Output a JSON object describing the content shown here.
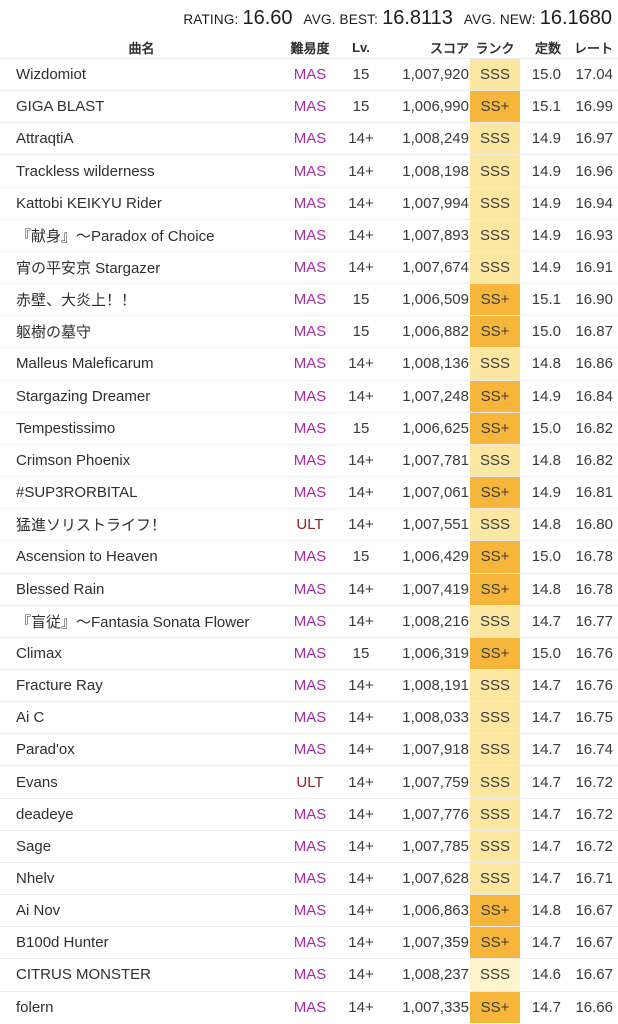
{
  "summary": {
    "rating_label": "RATING:",
    "rating_value": "16.60",
    "avg_best_label": "AVG. BEST:",
    "avg_best_value": "16.8113",
    "avg_new_label": "AVG. NEW:",
    "avg_new_value": "16.1680"
  },
  "table": {
    "headers": {
      "name": "曲名",
      "difficulty": "難易度",
      "level": "Lv.",
      "score": "スコア",
      "rank": "ランク",
      "constant": "定数",
      "rate": "レート"
    },
    "rows": [
      {
        "name": "Wizdomiot",
        "difficulty": "MAS",
        "level": "15",
        "score": "1,007,920",
        "rank": "SSS",
        "rank_key": "sss",
        "constant": "15.0",
        "rate": "17.04"
      },
      {
        "name": "GIGA BLAST",
        "difficulty": "MAS",
        "level": "15",
        "score": "1,006,990",
        "rank": "SS+",
        "rank_key": "ss_plus",
        "constant": "15.1",
        "rate": "16.99"
      },
      {
        "name": "AttraqtiA",
        "difficulty": "MAS",
        "level": "14+",
        "score": "1,008,249",
        "rank": "SSS",
        "rank_key": "sss",
        "constant": "14.9",
        "rate": "16.97"
      },
      {
        "name": "Trackless wilderness",
        "difficulty": "MAS",
        "level": "14+",
        "score": "1,008,198",
        "rank": "SSS",
        "rank_key": "sss",
        "constant": "14.9",
        "rate": "16.96"
      },
      {
        "name": "Kattobi KEIKYU Rider",
        "difficulty": "MAS",
        "level": "14+",
        "score": "1,007,994",
        "rank": "SSS",
        "rank_key": "sss",
        "constant": "14.9",
        "rate": "16.94"
      },
      {
        "name": "『献身』～Paradox of Choice",
        "difficulty": "MAS",
        "level": "14+",
        "score": "1,007,893",
        "rank": "SSS",
        "rank_key": "sss",
        "constant": "14.9",
        "rate": "16.93"
      },
      {
        "name": "宵の平安京 Stargazer",
        "difficulty": "MAS",
        "level": "14+",
        "score": "1,007,674",
        "rank": "SSS",
        "rank_key": "sss",
        "constant": "14.9",
        "rate": "16.91"
      },
      {
        "name": "赤壁、大炎上！！",
        "difficulty": "MAS",
        "level": "15",
        "score": "1,006,509",
        "rank": "SS+",
        "rank_key": "ss_plus",
        "constant": "15.1",
        "rate": "16.90"
      },
      {
        "name": "躯樹の墓守",
        "difficulty": "MAS",
        "level": "15",
        "score": "1,006,882",
        "rank": "SS+",
        "rank_key": "ss_plus",
        "constant": "15.0",
        "rate": "16.87"
      },
      {
        "name": "Malleus Maleficarum",
        "difficulty": "MAS",
        "level": "14+",
        "score": "1,008,136",
        "rank": "SSS",
        "rank_key": "sss",
        "constant": "14.8",
        "rate": "16.86"
      },
      {
        "name": "Stargazing Dreamer",
        "difficulty": "MAS",
        "level": "14+",
        "score": "1,007,248",
        "rank": "SS+",
        "rank_key": "ss_plus",
        "constant": "14.9",
        "rate": "16.84"
      },
      {
        "name": "Tempestissimo",
        "difficulty": "MAS",
        "level": "15",
        "score": "1,006,625",
        "rank": "SS+",
        "rank_key": "ss_plus",
        "constant": "15.0",
        "rate": "16.82"
      },
      {
        "name": "Crimson Phoenix",
        "difficulty": "MAS",
        "level": "14+",
        "score": "1,007,781",
        "rank": "SSS",
        "rank_key": "sss",
        "constant": "14.8",
        "rate": "16.82"
      },
      {
        "name": "#SUP3RORBITAL",
        "difficulty": "MAS",
        "level": "14+",
        "score": "1,007,061",
        "rank": "SS+",
        "rank_key": "ss_plus",
        "constant": "14.9",
        "rate": "16.81"
      },
      {
        "name": "猛進ソリストライフ！",
        "difficulty": "ULT",
        "level": "14+",
        "score": "1,007,551",
        "rank": "SSS",
        "rank_key": "sss",
        "constant": "14.8",
        "rate": "16.80"
      },
      {
        "name": "Ascension to Heaven",
        "difficulty": "MAS",
        "level": "15",
        "score": "1,006,429",
        "rank": "SS+",
        "rank_key": "ss_plus",
        "constant": "15.0",
        "rate": "16.78"
      },
      {
        "name": "Blessed Rain",
        "difficulty": "MAS",
        "level": "14+",
        "score": "1,007,419",
        "rank": "SS+",
        "rank_key": "ss_plus",
        "constant": "14.8",
        "rate": "16.78"
      },
      {
        "name": "『盲従』～Fantasia Sonata Flower",
        "difficulty": "MAS",
        "level": "14+",
        "score": "1,008,216",
        "rank": "SSS",
        "rank_key": "sss",
        "constant": "14.7",
        "rate": "16.77"
      },
      {
        "name": "Climax",
        "difficulty": "MAS",
        "level": "15",
        "score": "1,006,319",
        "rank": "SS+",
        "rank_key": "ss_plus",
        "constant": "15.0",
        "rate": "16.76"
      },
      {
        "name": "Fracture Ray",
        "difficulty": "MAS",
        "level": "14+",
        "score": "1,008,191",
        "rank": "SSS",
        "rank_key": "sss",
        "constant": "14.7",
        "rate": "16.76"
      },
      {
        "name": "Ai C",
        "difficulty": "MAS",
        "level": "14+",
        "score": "1,008,033",
        "rank": "SSS",
        "rank_key": "sss",
        "constant": "14.7",
        "rate": "16.75"
      },
      {
        "name": "Parad'ox",
        "difficulty": "MAS",
        "level": "14+",
        "score": "1,007,918",
        "rank": "SSS",
        "rank_key": "sss",
        "constant": "14.7",
        "rate": "16.74"
      },
      {
        "name": "Evans",
        "difficulty": "ULT",
        "level": "14+",
        "score": "1,007,759",
        "rank": "SSS",
        "rank_key": "sss",
        "constant": "14.7",
        "rate": "16.72"
      },
      {
        "name": "deadeye",
        "difficulty": "MAS",
        "level": "14+",
        "score": "1,007,776",
        "rank": "SSS",
        "rank_key": "sss",
        "constant": "14.7",
        "rate": "16.72"
      },
      {
        "name": "Sage",
        "difficulty": "MAS",
        "level": "14+",
        "score": "1,007,785",
        "rank": "SSS",
        "rank_key": "sss",
        "constant": "14.7",
        "rate": "16.72"
      },
      {
        "name": "Nhelv",
        "difficulty": "MAS",
        "level": "14+",
        "score": "1,007,628",
        "rank": "SSS",
        "rank_key": "sss",
        "constant": "14.7",
        "rate": "16.71"
      },
      {
        "name": "Ai Nov",
        "difficulty": "MAS",
        "level": "14+",
        "score": "1,006,863",
        "rank": "SS+",
        "rank_key": "ss_plus",
        "constant": "14.8",
        "rate": "16.67"
      },
      {
        "name": "B100d Hunter",
        "difficulty": "MAS",
        "level": "14+",
        "score": "1,007,359",
        "rank": "SS+",
        "rank_key": "ss_plus",
        "constant": "14.7",
        "rate": "16.67"
      },
      {
        "name": "CITRUS MONSTER",
        "difficulty": "MAS",
        "level": "14+",
        "score": "1,008,237",
        "rank": "SSS",
        "rank_key": "sss_pale",
        "constant": "14.6",
        "rate": "16.67"
      },
      {
        "name": "folern",
        "difficulty": "MAS",
        "level": "14+",
        "score": "1,007,335",
        "rank": "SS+",
        "rank_key": "ss_plus",
        "constant": "14.7",
        "rate": "16.66"
      }
    ]
  },
  "colors": {
    "difficulty": {
      "MAS": "#a62ca6",
      "ULT": "#8e2020"
    },
    "rank_bg": {
      "sss": "#fbe7a1",
      "ss_plus": "#f6b63c",
      "sss_pale": "#fdf3cd"
    }
  }
}
